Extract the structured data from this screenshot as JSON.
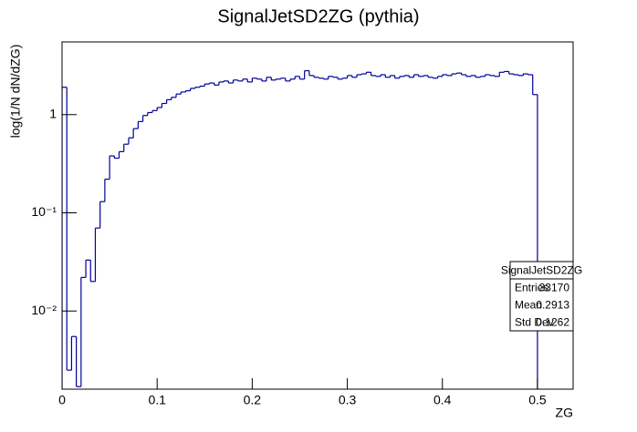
{
  "chart_data": {
    "type": "histogram",
    "title": "SignalJetSD2ZG (pythia)",
    "x_label": "ZG",
    "y_label": "log(1/N dN/dZG)",
    "log_y": true,
    "color": "#000099",
    "xlim": [
      0,
      0.5375
    ],
    "ylim": [
      0.0016,
      5.5
    ],
    "xticks": [
      0,
      0.1,
      0.2,
      0.3,
      0.4,
      0.5
    ],
    "yticks": [
      {
        "value": 0.01,
        "label": "10⁻²"
      },
      {
        "value": 0.1,
        "label": "10⁻¹"
      },
      1
    ],
    "bins": [
      0,
      0.005,
      0.01,
      0.015,
      0.02,
      0.025,
      0.03,
      0.035,
      0.04,
      0.045,
      0.05,
      0.055,
      0.06,
      0.065,
      0.07,
      0.075,
      0.08,
      0.085,
      0.09,
      0.095,
      0.1,
      0.105,
      0.11,
      0.115,
      0.12,
      0.125,
      0.13,
      0.135,
      0.14,
      0.145,
      0.15,
      0.155,
      0.16,
      0.165,
      0.17,
      0.175,
      0.18,
      0.185,
      0.19,
      0.195,
      0.2,
      0.205,
      0.21,
      0.215,
      0.22,
      0.225,
      0.23,
      0.235,
      0.24,
      0.245,
      0.25,
      0.255,
      0.26,
      0.265,
      0.27,
      0.275,
      0.28,
      0.285,
      0.29,
      0.295,
      0.3,
      0.305,
      0.31,
      0.315,
      0.32,
      0.325,
      0.33,
      0.335,
      0.34,
      0.345,
      0.35,
      0.355,
      0.36,
      0.365,
      0.37,
      0.375,
      0.38,
      0.385,
      0.39,
      0.395,
      0.4,
      0.405,
      0.41,
      0.415,
      0.42,
      0.425,
      0.43,
      0.435,
      0.44,
      0.445,
      0.45,
      0.455,
      0.46,
      0.465,
      0.47,
      0.475,
      0.48,
      0.485,
      0.49,
      0.495,
      0.5
    ],
    "values": [
      1.9,
      0.0025,
      0.0055,
      0.0017,
      0.022,
      0.033,
      0.02,
      0.07,
      0.13,
      0.22,
      0.38,
      0.36,
      0.42,
      0.5,
      0.58,
      0.72,
      0.85,
      0.98,
      1.05,
      1.1,
      1.18,
      1.3,
      1.42,
      1.5,
      1.62,
      1.7,
      1.75,
      1.85,
      1.9,
      1.95,
      2.05,
      2.1,
      2.0,
      2.15,
      2.2,
      2.1,
      2.25,
      2.2,
      2.3,
      2.15,
      2.35,
      2.3,
      2.2,
      2.4,
      2.25,
      2.3,
      2.35,
      2.2,
      2.3,
      2.45,
      2.3,
      2.8,
      2.5,
      2.4,
      2.35,
      2.3,
      2.45,
      2.4,
      2.3,
      2.35,
      2.5,
      2.4,
      2.55,
      2.6,
      2.7,
      2.5,
      2.45,
      2.55,
      2.4,
      2.5,
      2.35,
      2.45,
      2.5,
      2.4,
      2.55,
      2.45,
      2.5,
      2.4,
      2.35,
      2.45,
      2.55,
      2.5,
      2.6,
      2.65,
      2.55,
      2.45,
      2.5,
      2.4,
      2.45,
      2.55,
      2.5,
      2.45,
      2.7,
      2.75,
      2.6,
      2.55,
      2.5,
      2.6,
      2.55,
      1.6
    ],
    "stats_box": {
      "title": "SignalJetSD2ZG",
      "rows": [
        [
          "Entries",
          33170
        ],
        [
          "Mean",
          0.2913
        ],
        [
          "Std Dev",
          0.1262
        ]
      ]
    }
  }
}
